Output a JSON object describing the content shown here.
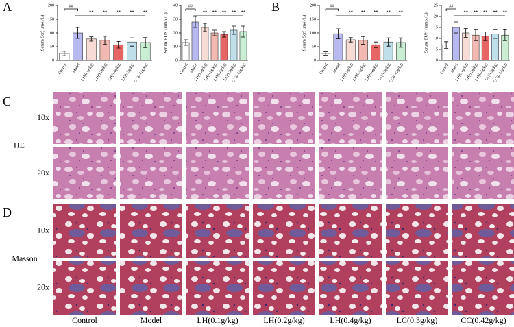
{
  "panel_labels": [
    "A",
    "B",
    "C",
    "D"
  ],
  "chart_data": [
    {
      "type": "bar",
      "ylabel": "Serum Scr( umol/L)",
      "categories": [
        "Control",
        "Model",
        "LH(0.1g/kg)",
        "LH(0.2g/kg)",
        "LH(0.4g/kg)",
        "LC(0.3g/kg)",
        "CC(0.42g/kg)"
      ],
      "values": [
        25,
        100,
        78,
        73,
        57,
        67,
        65
      ],
      "errors": [
        8,
        20,
        8,
        15,
        12,
        15,
        18
      ],
      "colors": [
        "#ffffff",
        "#b9b9f2",
        "#f7dcd6",
        "#f1b9b1",
        "#e86565",
        "#bfe0ea",
        "#c9eed3"
      ],
      "markers": [
        null,
        "##",
        "**",
        "**",
        "**",
        "**",
        "**"
      ],
      "ylim": [
        0,
        200
      ],
      "yticks": [
        0,
        50,
        100,
        150,
        200
      ]
    },
    {
      "type": "bar",
      "ylabel": "Serum BUN (mmol/L)",
      "categories": [
        "Control",
        "Model",
        "LH(0.1g/kg)",
        "LH(0.2g/kg)",
        "LH(0.4g/kg)",
        "LC(0.3g/kg)",
        "CC(0.42g/kg)"
      ],
      "values": [
        13,
        28,
        24,
        20,
        19,
        22,
        21
      ],
      "errors": [
        2,
        4,
        3,
        2,
        2,
        3,
        4
      ],
      "colors": [
        "#ffffff",
        "#b9b9f2",
        "#f7dcd6",
        "#f1b9b1",
        "#e86565",
        "#bfe0ea",
        "#c9eed3"
      ],
      "markers": [
        null,
        "##",
        "**",
        "**",
        "**",
        "**",
        "**"
      ],
      "ylim": [
        0,
        40
      ],
      "yticks": [
        0,
        10,
        20,
        30,
        40
      ]
    },
    {
      "type": "bar",
      "ylabel": "Serum Scr( umol/L)",
      "categories": [
        "Control",
        "Model",
        "LH(0.1g/kg)",
        "LH(0.2g/kg)",
        "LH(0.4g/kg)",
        "LC(0.3g/kg)",
        "CC(0.42g/kg)"
      ],
      "values": [
        25,
        97,
        75,
        73,
        57,
        67,
        65
      ],
      "errors": [
        6,
        18,
        8,
        14,
        10,
        15,
        17
      ],
      "colors": [
        "#ffffff",
        "#b9b9f2",
        "#f7dcd6",
        "#f1b9b1",
        "#e86565",
        "#bfe0ea",
        "#c9eed3"
      ],
      "markers": [
        null,
        "##",
        "**",
        "**",
        "**",
        "**",
        "**"
      ],
      "ylim": [
        0,
        200
      ],
      "yticks": [
        0,
        50,
        100,
        150,
        200
      ]
    },
    {
      "type": "bar",
      "ylabel": "Serum BUN (mmol/L)",
      "categories": [
        "Control",
        "Model",
        "LH(0.1g/kg)",
        "LH(0.2g/kg)",
        "LH(0.4g/kg)",
        "LC(0.3g/kg)",
        "CC(0.42g/kg)"
      ],
      "values": [
        7,
        15,
        12.5,
        11.5,
        11,
        12,
        11.5
      ],
      "errors": [
        1.5,
        2.5,
        2,
        2.5,
        2,
        2,
        2.5
      ],
      "colors": [
        "#ffffff",
        "#b9b9f2",
        "#f7dcd6",
        "#f1b9b1",
        "#e86565",
        "#bfe0ea",
        "#c9eed3"
      ],
      "markers": [
        null,
        "##",
        "**",
        "**",
        "**",
        "**",
        "**"
      ],
      "ylim": [
        0,
        25
      ],
      "yticks": [
        0,
        5,
        10,
        15,
        20,
        25
      ]
    }
  ],
  "histology": {
    "stains": [
      {
        "name": "HE",
        "magnifications": [
          "10x",
          "20x"
        ]
      },
      {
        "name": "Masson",
        "magnifications": [
          "10x",
          "20x"
        ]
      }
    ],
    "columns": [
      "Control",
      "Model",
      "LH(0.1g/kg)",
      "LH(0.2g/kg)",
      "LH(0.4g/kg)",
      "LC(0.3g/kg)",
      "CC(0.42g/kg)"
    ]
  }
}
